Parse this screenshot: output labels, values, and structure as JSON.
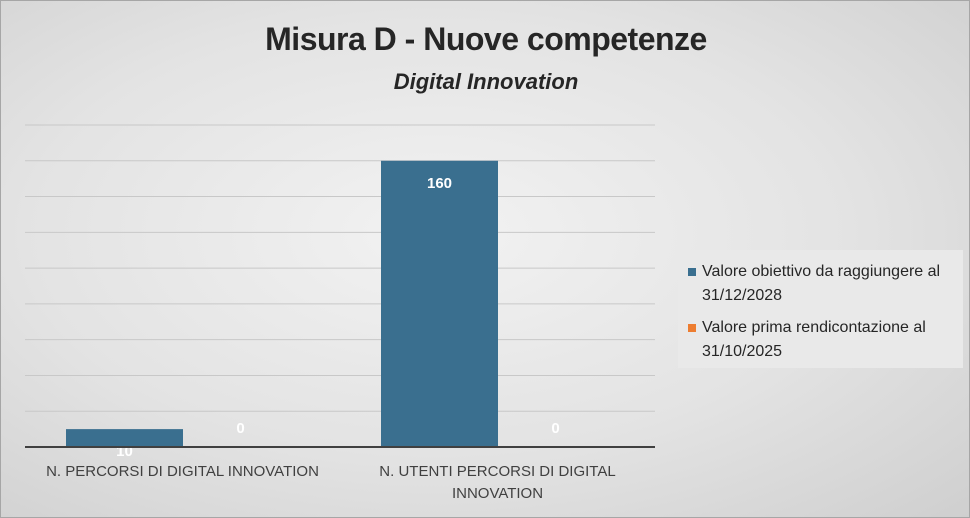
{
  "chart_data": {
    "type": "bar",
    "title": "Misura D - Nuove competenze",
    "subtitle": "Digital Innovation",
    "categories": [
      [
        "N. PERCORSI DI DIGITAL INNOVATION"
      ],
      [
        "N. UTENTI PERCORSI DI DIGITAL",
        "INNOVATION"
      ]
    ],
    "series": [
      {
        "name": "Valore obiettivo da raggiungere al 31/12/2028",
        "legend_lines": [
          "Valore obiettivo da raggiungere al",
          "31/12/2028"
        ],
        "values": [
          10,
          160
        ],
        "labels": [
          "10",
          "160"
        ],
        "color": "#3a6f8f"
      },
      {
        "name": "Valore prima rendicontazione al 31/10/2025",
        "legend_lines": [
          "Valore prima rendicontazione al",
          "31/10/2025"
        ],
        "values": [
          0,
          0
        ],
        "labels": [
          "0",
          "0"
        ],
        "color": "#ed7d31"
      }
    ],
    "ylim": [
      0,
      180
    ],
    "grid": true,
    "legend_position": "right"
  }
}
